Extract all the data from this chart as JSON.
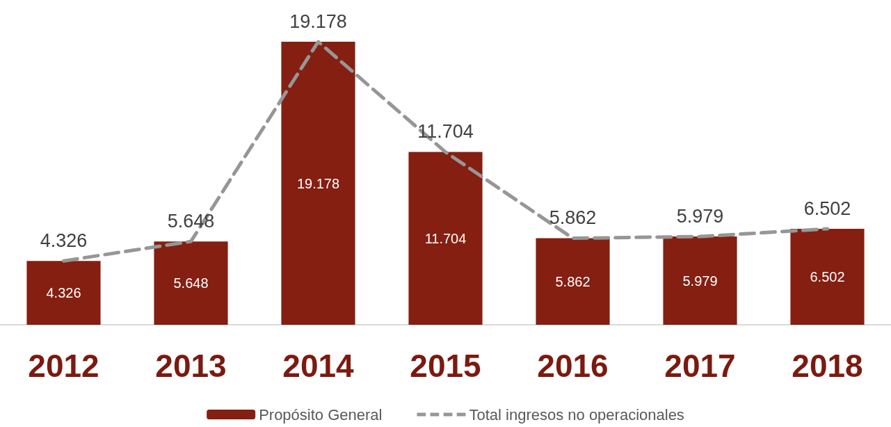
{
  "chart_data": {
    "type": "bar",
    "categories": [
      "2012",
      "2013",
      "2014",
      "2015",
      "2016",
      "2017",
      "2018"
    ],
    "series": [
      {
        "name": "Propósito General",
        "color": "#841f11",
        "values": [
          4326,
          5648,
          19178,
          11704,
          5862,
          5979,
          6502
        ],
        "value_labels": [
          "4.326",
          "5.648",
          "19.178",
          "11.704",
          "5.862",
          "5.979",
          "6.502"
        ]
      },
      {
        "name": "Total ingresos no operacionales",
        "type": "line",
        "color": "#969696",
        "line_style": "dashed",
        "values": [
          4326,
          5648,
          19178,
          11704,
          5862,
          5979,
          6502
        ],
        "value_labels": [
          "4.326",
          "5.648",
          "19.178",
          "11.704",
          "5.862",
          "5.979",
          "6.502"
        ]
      }
    ],
    "legend": "bottom",
    "grid": false,
    "marker": "none"
  }
}
